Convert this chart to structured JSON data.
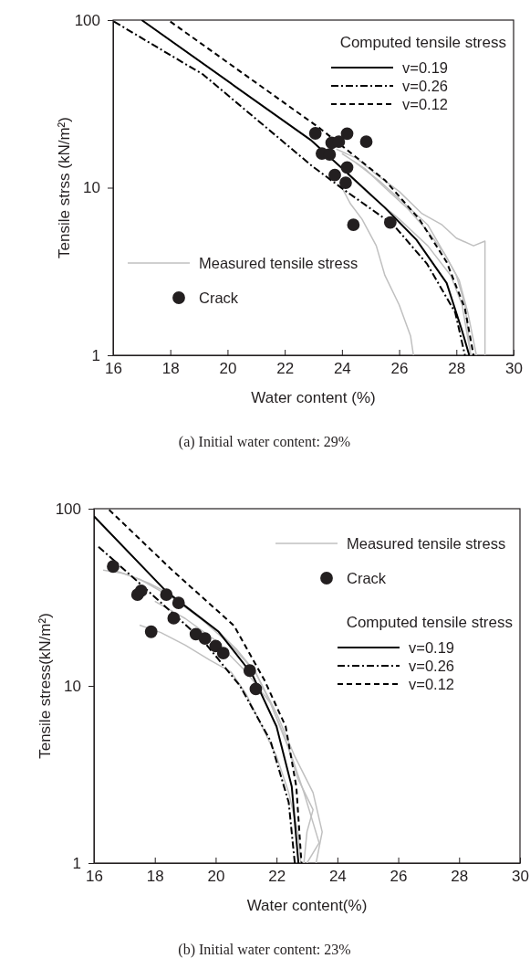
{
  "chart_data": [
    {
      "type": "line",
      "xlabel": "Water content (%)",
      "ylabel": "Tensile strss (kN/m²)",
      "legend_title": "Computed tensile stress",
      "legend": "left",
      "log": "y",
      "xlim": [
        16,
        30
      ],
      "ylim": [
        1,
        100
      ],
      "xticks": [
        16,
        18,
        20,
        22,
        24,
        26,
        28,
        30
      ],
      "yticks": [
        1,
        10,
        100
      ],
      "annotations": [
        "(a) Initial water content: 29%"
      ],
      "series": [
        {
          "name": "Measured tensile stress",
          "color": "#c0c0c0",
          "x": [
            23.8,
            24.5,
            25.2,
            26,
            26.8,
            27.5,
            28,
            28.6,
            29,
            29
          ],
          "values": [
            17,
            15,
            12,
            9.5,
            7,
            6,
            5,
            4.5,
            4.8,
            1
          ]
        },
        {
          "color": "#c0c0c0",
          "x": [
            24,
            24.8,
            25.5,
            26.3,
            27,
            27.6,
            28,
            28.3,
            28.5
          ],
          "values": [
            16,
            13,
            10,
            7.5,
            5.5,
            4,
            3,
            2,
            1
          ]
        },
        {
          "color": "#c0c0c0",
          "x": [
            24,
            24.3,
            24.7,
            25.2,
            25.5,
            26,
            26.4,
            26.5
          ],
          "values": [
            10,
            8,
            6.5,
            4.5,
            3,
            2,
            1.3,
            1
          ]
        },
        {
          "color": "#c0c0c0",
          "x": [
            24.5,
            25.3,
            26.2,
            27,
            27.6,
            28.1,
            28.4,
            28.7
          ],
          "values": [
            14,
            11,
            8,
            6,
            4,
            2.8,
            1.8,
            1
          ]
        },
        {
          "color": "#c0c0c0",
          "x": [
            24.2,
            25,
            26,
            27,
            27.8,
            28.2,
            28.5
          ],
          "values": [
            12,
            9,
            6.5,
            4.5,
            3,
            2,
            1
          ]
        },
        {
          "name": "v=0.19",
          "color": "#000000",
          "line_style": "solid",
          "x": [
            17,
            22.9,
            24.1,
            25.5,
            26.6,
            27.66,
            28.2,
            28.45
          ],
          "values": [
            100,
            19.3,
            12.6,
            7.6,
            4.9,
            2.7,
            1.4,
            1
          ]
        },
        {
          "name": "v=0.26",
          "color": "#000000",
          "line_style": "dashdot",
          "x": [
            16.03,
            19.15,
            22.97,
            24.15,
            25.8,
            26.98,
            27.96,
            28.3
          ],
          "values": [
            98,
            47.3,
            13.4,
            9.5,
            6,
            3.5,
            1.8,
            1
          ]
        },
        {
          "name": "v=0.12",
          "color": "#000000",
          "line_style": "dashed",
          "x": [
            18,
            23.2,
            25.5,
            26.7,
            27.66,
            28.3,
            28.6
          ],
          "values": [
            98,
            22.8,
            11.1,
            6.5,
            3.6,
            1.9,
            1
          ]
        },
        {
          "name": "Crack",
          "type": "scatter",
          "marker": "circle",
          "color": "#231f20",
          "x": [
            23.07,
            24.18,
            24.85,
            23.64,
            23.89,
            23.3,
            23.57,
            24.18,
            23.75,
            24.13,
            24.4,
            25.69
          ],
          "values": [
            21.1,
            21,
            18.8,
            18.5,
            18.8,
            16,
            15.8,
            13.2,
            11.9,
            10.7,
            6,
            6.2
          ]
        }
      ]
    },
    {
      "type": "line",
      "xlabel": "Water content(%)",
      "ylabel": "Tensile stress(kN/m²)",
      "legend_title": "Computed tensile stress",
      "legend": "right",
      "log": "y",
      "xlim": [
        16,
        30
      ],
      "ylim": [
        1,
        100
      ],
      "xticks": [
        16,
        18,
        20,
        22,
        24,
        26,
        28,
        30
      ],
      "yticks": [
        1,
        10,
        100
      ],
      "annotations": [
        "(b) Initial water content: 23%"
      ],
      "series": [
        {
          "name": "Measured tensile stress",
          "color": "#c0c0c0",
          "x": [
            16.3,
            17,
            17.8,
            18.5,
            19.3,
            20,
            20.7,
            21.3,
            21.8,
            22.3,
            22.7,
            23.2,
            23,
            22.9
          ],
          "values": [
            45,
            43,
            38,
            33,
            26,
            21,
            16,
            12,
            8,
            5,
            3,
            2,
            1.5,
            1
          ]
        },
        {
          "color": "#c0c0c0",
          "x": [
            17.5,
            18.2,
            19,
            19.8,
            20.5,
            21,
            21.5,
            22,
            22.4,
            22.7,
            22.8
          ],
          "values": [
            22,
            20,
            17,
            14,
            12,
            9,
            6,
            4,
            2.5,
            1.5,
            1
          ]
        },
        {
          "color": "#c0c0c0",
          "x": [
            16.5,
            17.5,
            18.5,
            19.5,
            20.5,
            21.3,
            22,
            22.6,
            23.2,
            23.5,
            23.3
          ],
          "values": [
            46,
            40,
            32,
            24,
            17,
            12,
            7,
            4,
            2.5,
            1.5,
            1
          ]
        },
        {
          "color": "#c0c0c0",
          "x": [
            18,
            19,
            20,
            21,
            21.8,
            22.5,
            22.9,
            23.4,
            23
          ],
          "values": [
            30,
            24,
            18,
            12,
            8,
            4,
            2.5,
            1.3,
            1
          ]
        },
        {
          "name": "Crack",
          "type": "scatter",
          "marker": "circle",
          "color": "#231f20",
          "x": [
            16.63,
            17.43,
            17.55,
            18.38,
            18.78,
            18.62,
            17.88,
            19.35,
            19.65,
            20,
            20.25,
            21.12,
            21.32
          ],
          "values": [
            47.2,
            32.7,
            34.4,
            32.7,
            29.4,
            24.1,
            20.2,
            19.6,
            18.5,
            16.8,
            15.3,
            12.2,
            9.6
          ]
        },
        {
          "name": "v=0.19",
          "color": "#000000",
          "line_style": "solid",
          "x": [
            16,
            18.4,
            20.1,
            21.2,
            22,
            22.5,
            22.72
          ],
          "values": [
            90.6,
            33.8,
            20.2,
            11.6,
            5.9,
            2.7,
            1
          ]
        },
        {
          "name": "v=0.26",
          "color": "#000000",
          "line_style": "dashdot",
          "x": [
            16.15,
            17.6,
            19.6,
            20.8,
            21.8,
            22.4,
            22.6
          ],
          "values": [
            61,
            36.6,
            17.9,
            10,
            4.9,
            2.2,
            1
          ]
        },
        {
          "name": "v=0.12",
          "color": "#000000",
          "line_style": "dashed",
          "x": [
            16.5,
            18.6,
            20.6,
            21.6,
            22.3,
            22.65,
            22.82
          ],
          "values": [
            98.5,
            44.5,
            21.9,
            10.8,
            5.9,
            2.7,
            1
          ]
        }
      ]
    }
  ]
}
